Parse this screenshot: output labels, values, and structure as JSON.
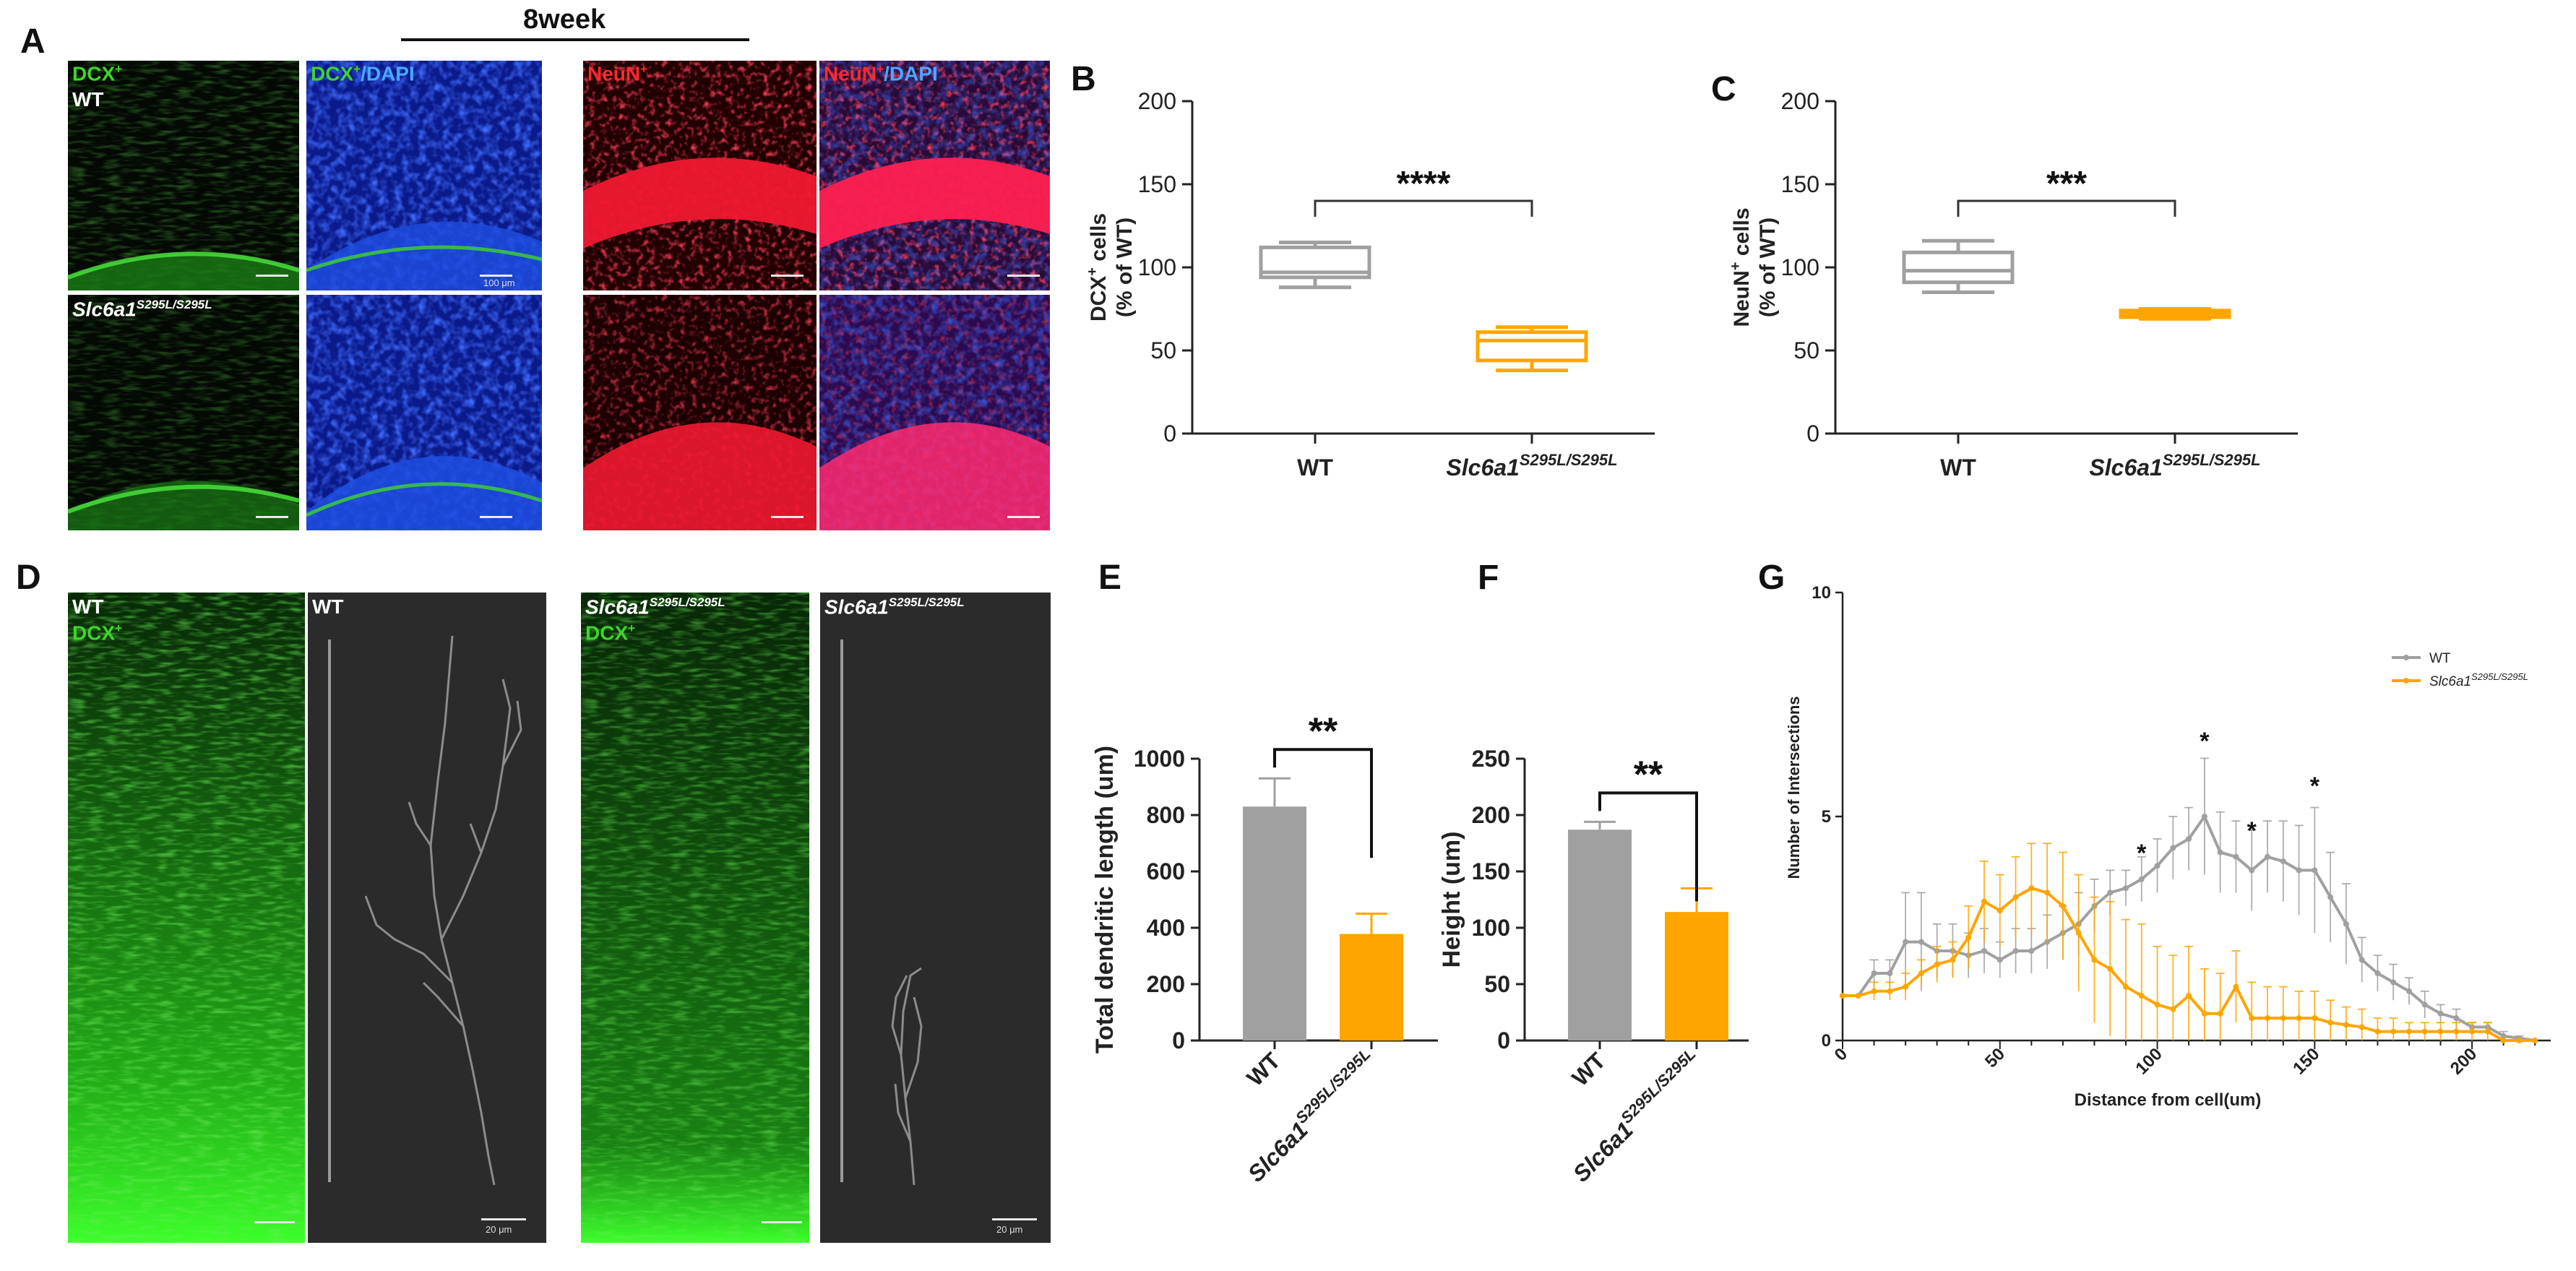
{
  "colors": {
    "wt": "#a0a0a0",
    "mutant": "#ffa500",
    "dcx": "#39c12a",
    "neun": "#e8122a",
    "dapi": "#1e46e0"
  },
  "header": {
    "title": "8week"
  },
  "panels": {
    "A": "A",
    "B": "B",
    "C": "C",
    "D": "D",
    "E": "E",
    "F": "F",
    "G": "G"
  },
  "panelA": {
    "dcx_label": "DCX",
    "dcx_sup": "+",
    "dcx_dapi_label1": "DCX",
    "dcx_dapi_sup": "+",
    "dcx_dapi_label2": "/DAPI",
    "neun_label": "NeuN",
    "neun_sup": "+",
    "neun_dapi_label1": "NeuN",
    "neun_dapi_sup": "+",
    "neun_dapi_label2": "/DAPI",
    "wt_label": "WT",
    "mut_label": "Slc6a1",
    "mut_sup": "S295L/S295L",
    "scale_text": "100 μm"
  },
  "panelD": {
    "wt_label": "WT",
    "dcx_label": "DCX",
    "dcx_sup": "+",
    "mut_label": "Slc6a1",
    "mut_sup": "S295L/S295L",
    "scale_text": "20 μm"
  },
  "genotype": {
    "wt": "WT",
    "mut_base": "Slc6a1",
    "mut_sup": "S295L/S295L"
  },
  "chart_data": [
    {
      "id": "B",
      "type": "box",
      "ylabel_line1": "DCX",
      "ylabel_sup": "+",
      "ylabel_line1_suffix": " cells",
      "ylabel_line2": "(% of WT)",
      "ylim": [
        0,
        200
      ],
      "yticks": [
        "0",
        "50",
        "100",
        "150",
        "200"
      ],
      "categories": [
        "WT",
        "Slc6a1 S295L/S295L"
      ],
      "boxes": [
        {
          "name": "WT",
          "min": 88,
          "q1": 94,
          "median": 97,
          "q3": 112,
          "max": 115
        },
        {
          "name": "Slc6a1 S295L/S295L",
          "min": 38,
          "q1": 44,
          "median": 56,
          "q3": 61,
          "max": 64
        }
      ],
      "significance": "****"
    },
    {
      "id": "C",
      "type": "box",
      "ylabel_line1": "NeuN",
      "ylabel_sup": "+",
      "ylabel_line1_suffix": " cells",
      "ylabel_line2": "(% of WT)",
      "ylim": [
        0,
        200
      ],
      "yticks": [
        "0",
        "50",
        "100",
        "150",
        "200"
      ],
      "categories": [
        "WT",
        "Slc6a1 S295L/S295L"
      ],
      "boxes": [
        {
          "name": "WT",
          "min": 85,
          "q1": 91,
          "median": 98,
          "q3": 109,
          "max": 116
        },
        {
          "name": "Slc6a1 S295L/S295L",
          "min": 69,
          "q1": 70,
          "median": 72,
          "q3": 74,
          "max": 75
        }
      ],
      "significance": "***"
    },
    {
      "id": "E",
      "type": "bar",
      "ylabel": "Total dendritic length (um)",
      "ylim": [
        0,
        1000
      ],
      "yticks": [
        "0",
        "200",
        "400",
        "600",
        "800",
        "1000"
      ],
      "categories": [
        "WT",
        "Slc6a1 S295L/S295L"
      ],
      "values": [
        830,
        378
      ],
      "errors": [
        100,
        72
      ],
      "significance": "**"
    },
    {
      "id": "F",
      "type": "bar",
      "ylabel": "Height (um)",
      "ylim": [
        0,
        250
      ],
      "yticks": [
        "0",
        "50",
        "100",
        "150",
        "200",
        "250"
      ],
      "categories": [
        "WT",
        "Slc6a1 S295L/S295L"
      ],
      "values": [
        187,
        114
      ],
      "errors": [
        7,
        21
      ],
      "significance": "**"
    },
    {
      "id": "G",
      "type": "line",
      "xlabel": "Distance from cell(um)",
      "ylabel": "Number of Intersections",
      "xlim": [
        0,
        225
      ],
      "ylim": [
        0,
        10
      ],
      "xticks": [
        "0",
        "50",
        "100",
        "150",
        "200"
      ],
      "yticks": [
        "0",
        "5",
        "10"
      ],
      "legend_position": "top-right",
      "series": [
        {
          "name": "WT",
          "x": [
            0,
            5,
            10,
            15,
            20,
            25,
            30,
            35,
            40,
            45,
            50,
            55,
            60,
            65,
            70,
            75,
            80,
            85,
            90,
            95,
            100,
            105,
            110,
            115,
            120,
            125,
            130,
            135,
            140,
            145,
            150,
            155,
            160,
            165,
            170,
            175,
            180,
            185,
            190,
            195,
            200,
            205,
            210,
            215,
            220
          ],
          "y": [
            1,
            1,
            1.5,
            1.5,
            2.2,
            2.2,
            2,
            2,
            1.9,
            2,
            1.8,
            2,
            2,
            2.2,
            2.4,
            2.6,
            3,
            3.3,
            3.4,
            3.6,
            3.9,
            4.3,
            4.5,
            5,
            4.2,
            4.1,
            3.8,
            4.1,
            4,
            3.8,
            3.8,
            3.2,
            2.6,
            1.8,
            1.5,
            1.3,
            1.1,
            0.8,
            0.6,
            0.5,
            0.3,
            0.3,
            0.1,
            0.05,
            0
          ],
          "err": [
            0,
            0,
            0.3,
            0.3,
            1.1,
            1.1,
            0.6,
            0.6,
            0.5,
            0.5,
            0.4,
            0.5,
            0.5,
            0.6,
            0.6,
            0.7,
            0.6,
            0.5,
            0.4,
            0.5,
            0.6,
            0.7,
            0.7,
            1.3,
            0.9,
            0.8,
            0.9,
            0.8,
            0.9,
            1,
            1.4,
            1,
            0.9,
            0.5,
            0.4,
            0.4,
            0.3,
            0.3,
            0.2,
            0.2,
            0.1,
            0.1,
            0.1,
            0.05,
            0
          ]
        },
        {
          "name": "Slc6a1 S295L/S295L",
          "x": [
            0,
            5,
            10,
            15,
            20,
            25,
            30,
            35,
            40,
            45,
            50,
            55,
            60,
            65,
            70,
            75,
            80,
            85,
            90,
            95,
            100,
            105,
            110,
            115,
            120,
            125,
            130,
            135,
            140,
            145,
            150,
            155,
            160,
            165,
            170,
            175,
            180,
            185,
            190,
            195,
            200,
            205,
            210,
            215,
            220
          ],
          "y": [
            1,
            1,
            1.1,
            1.1,
            1.2,
            1.5,
            1.7,
            1.8,
            2.3,
            3.1,
            2.9,
            3.2,
            3.4,
            3.3,
            3,
            2.4,
            1.8,
            1.6,
            1.2,
            1,
            0.8,
            0.7,
            1,
            0.6,
            0.6,
            1.2,
            0.5,
            0.5,
            0.5,
            0.5,
            0.5,
            0.4,
            0.35,
            0.3,
            0.2,
            0.2,
            0.2,
            0.2,
            0.2,
            0.2,
            0.2,
            0.2,
            0,
            0,
            0
          ],
          "err": [
            0,
            0,
            0.2,
            0.2,
            0.3,
            0.3,
            0.4,
            0.4,
            0.7,
            0.9,
            0.8,
            0.9,
            1,
            1.1,
            1.2,
            1.3,
            1.4,
            1.5,
            1.5,
            1.6,
            1.3,
            1.2,
            1.1,
            1,
            0.9,
            0.8,
            0.8,
            0.7,
            0.7,
            0.6,
            0.6,
            0.5,
            0.4,
            0.4,
            0.3,
            0.3,
            0.2,
            0.2,
            0.2,
            0.2,
            0.2,
            0.2,
            0,
            0,
            0
          ]
        }
      ],
      "annotations": [
        {
          "x": 95,
          "y": 4.0,
          "text": "*"
        },
        {
          "x": 115,
          "y": 6.5,
          "text": "*"
        },
        {
          "x": 130,
          "y": 4.5,
          "text": "*"
        },
        {
          "x": 150,
          "y": 5.5,
          "text": "*"
        }
      ]
    }
  ]
}
